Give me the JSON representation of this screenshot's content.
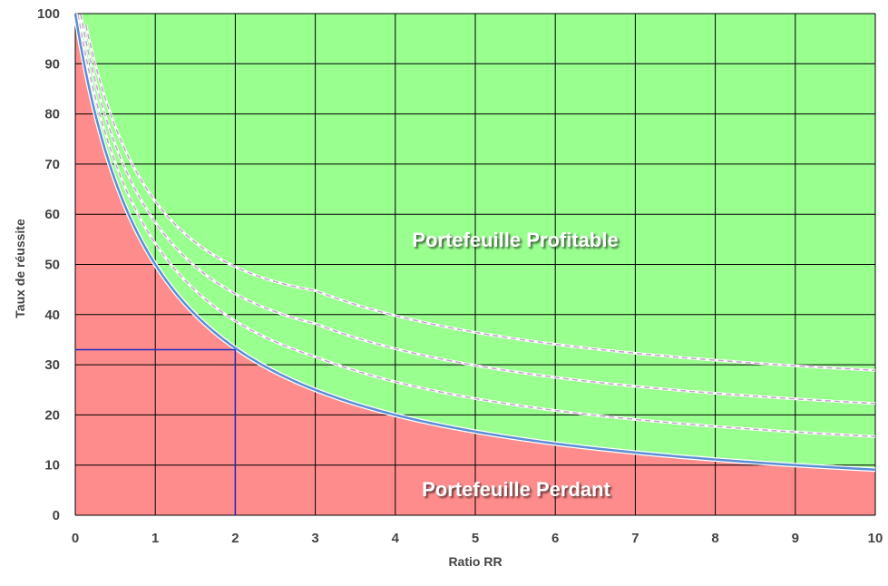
{
  "chart_data": {
    "type": "area",
    "xlabel": "Ratio RR",
    "ylabel": "Taux de réussite",
    "xlim": [
      0,
      10
    ],
    "ylim": [
      0,
      100
    ],
    "x_ticks": [
      "0",
      "1",
      "2",
      "3",
      "4",
      "5",
      "6",
      "7",
      "8",
      "9",
      "10"
    ],
    "y_ticks": [
      "0",
      "10",
      "20",
      "30",
      "40",
      "50",
      "60",
      "70",
      "80",
      "90",
      "100"
    ],
    "grid": true,
    "colors": {
      "profit_zone": "#99ff8f",
      "loss_zone": "#ff8c8c",
      "breakeven_line": "#5b8fd6",
      "offset_lines": "#c8a0d0",
      "marker_line": "#1f2bbd",
      "grid": "#000000"
    },
    "breakeven_curve": {
      "formula": "100/(1+x)",
      "x": [
        0,
        0.5,
        1,
        2,
        3,
        4,
        5,
        6,
        7,
        8,
        9,
        10
      ],
      "y": [
        100,
        66.7,
        50,
        33.3,
        25,
        20,
        16.7,
        14.3,
        12.5,
        11.1,
        10,
        9.1
      ]
    },
    "dashed_curves": [
      {
        "offset_y": 3
      },
      {
        "offset_y": 6
      },
      {
        "offset_y": 9
      }
    ],
    "marker": {
      "x": 2,
      "y": 33
    },
    "annotations": {
      "profit": "Portefeuille Profitable",
      "loss": "Portefeuille Perdant"
    }
  }
}
